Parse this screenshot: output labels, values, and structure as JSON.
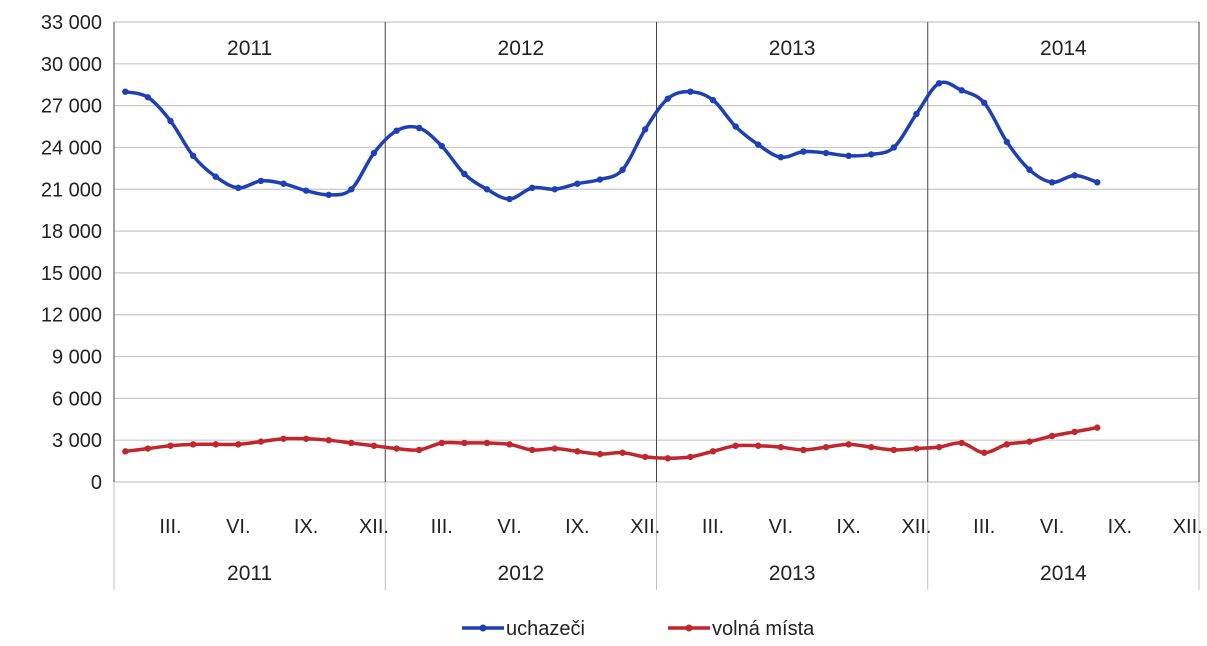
{
  "chart_data": {
    "type": "line",
    "ylim": [
      0,
      33000
    ],
    "yticks": [
      "0",
      "3 000",
      "6 000",
      "9 000",
      "12 000",
      "15 000",
      "18 000",
      "21 000",
      "24 000",
      "27 000",
      "30 000",
      "33 000"
    ],
    "ytick_values": [
      0,
      3000,
      6000,
      9000,
      12000,
      15000,
      18000,
      21000,
      24000,
      27000,
      30000,
      33000
    ],
    "grid": true,
    "years": [
      "2011",
      "2012",
      "2013",
      "2014"
    ],
    "month_ticks": [
      "III.",
      "VI.",
      "IX.",
      "XII."
    ],
    "legend_position": "bottom",
    "series": [
      {
        "name": "uchazeči",
        "color": "#1f3fb4",
        "values": [
          28000,
          27600,
          25900,
          23400,
          21900,
          21100,
          21600,
          21400,
          20900,
          20600,
          21000,
          23600,
          25200,
          25400,
          24100,
          22100,
          21000,
          20300,
          21100,
          21000,
          21400,
          21700,
          22400,
          25300,
          27500,
          28000,
          27400,
          25500,
          24200,
          23300,
          23700,
          23600,
          23400,
          23500,
          24000,
          26400,
          28600,
          28100,
          27200,
          24400,
          22400,
          21500,
          22000,
          21500
        ]
      },
      {
        "name": "volná místa",
        "color": "#c0262c",
        "values": [
          2200,
          2400,
          2600,
          2700,
          2700,
          2700,
          2900,
          3100,
          3100,
          3000,
          2800,
          2600,
          2400,
          2300,
          2800,
          2800,
          2800,
          2700,
          2300,
          2400,
          2200,
          2000,
          2100,
          1800,
          1700,
          1800,
          2200,
          2600,
          2600,
          2500,
          2300,
          2500,
          2700,
          2500,
          2300,
          2400,
          2500,
          2800,
          2100,
          2700,
          2900,
          3300,
          3600,
          3900
        ]
      }
    ]
  }
}
